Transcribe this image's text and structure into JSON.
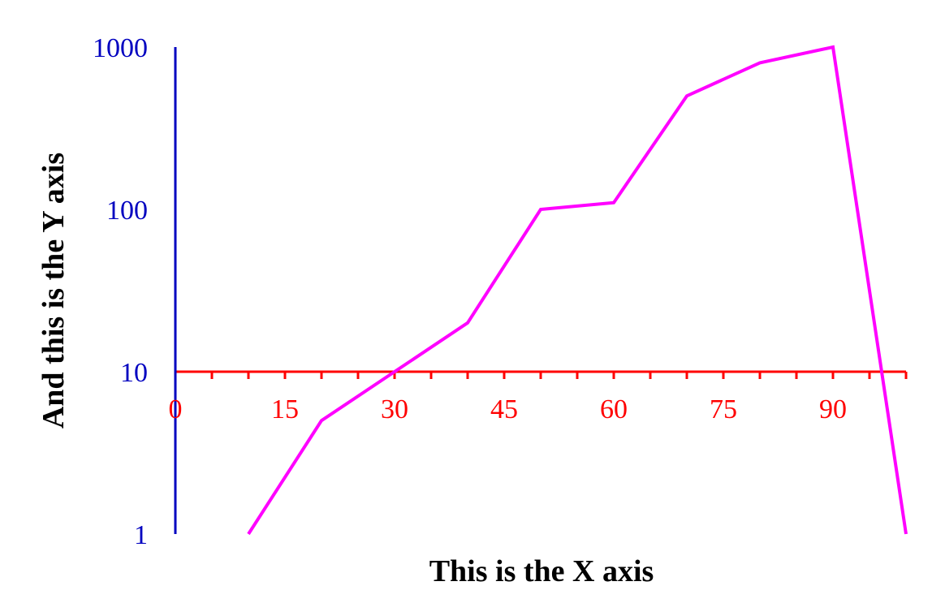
{
  "chart_data": {
    "type": "line",
    "xlabel": "This is the X axis",
    "ylabel": "And this is the Y axis",
    "xlim": [
      0,
      100
    ],
    "ylim": [
      1,
      1000
    ],
    "yscale": "log",
    "x_axis_crosses_y_at": 10,
    "x_ticks": [
      "0",
      "15",
      "30",
      "45",
      "60",
      "75",
      "90"
    ],
    "x_tick_values": [
      0,
      15,
      30,
      45,
      60,
      75,
      90
    ],
    "x_minor_tick_step": 5,
    "y_ticks": [
      "1",
      "10",
      "100",
      "1000"
    ],
    "y_tick_values": [
      1,
      10,
      100,
      1000
    ],
    "grid": false,
    "series": [
      {
        "x": [
          10,
          20,
          30,
          40,
          50,
          60,
          70,
          80,
          90,
          100
        ],
        "y": [
          1,
          5,
          10,
          20,
          100,
          110,
          500,
          800,
          1000,
          1
        ]
      }
    ],
    "colors": {
      "x_axis": "#ff0000",
      "y_axis": "#0000c0",
      "series": "#ff00ff"
    }
  }
}
